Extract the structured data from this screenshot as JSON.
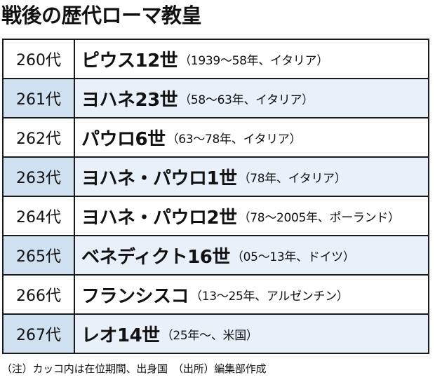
{
  "title": "戦後の歴代ローマ教皇",
  "rows": [
    {
      "ordinal": "260代",
      "name": "ピウス12世",
      "detail": "（1939〜58年、イタリア）"
    },
    {
      "ordinal": "261代",
      "name": "ヨハネ23世",
      "detail": "（58〜63年、イタリア）"
    },
    {
      "ordinal": "262代",
      "name": "パウロ6世",
      "detail": "（63〜78年、イタリア）"
    },
    {
      "ordinal": "263代",
      "name": "ヨハネ・パウロ1世",
      "detail": "（78年、イタリア）"
    },
    {
      "ordinal": "264代",
      "name": "ヨハネ・パウロ2世",
      "detail": "（78〜2005年、ポーランド）"
    },
    {
      "ordinal": "265代",
      "name": "ベネディクト16世",
      "detail": "（05〜13年、ドイツ）"
    },
    {
      "ordinal": "266代",
      "name": "フランシスコ",
      "detail": "（13〜25年、アルゼンチン）"
    },
    {
      "ordinal": "267代",
      "name": "レオ14世",
      "detail": "（25年〜、米国）"
    }
  ],
  "footnote": "（注）カッコ内は在位期間、出身国　（出所）編集部作成",
  "colors": {
    "ordinal_shade": "#cfe0f1",
    "row_shade": "#e8f1fa",
    "border": "#1a1a1a"
  }
}
